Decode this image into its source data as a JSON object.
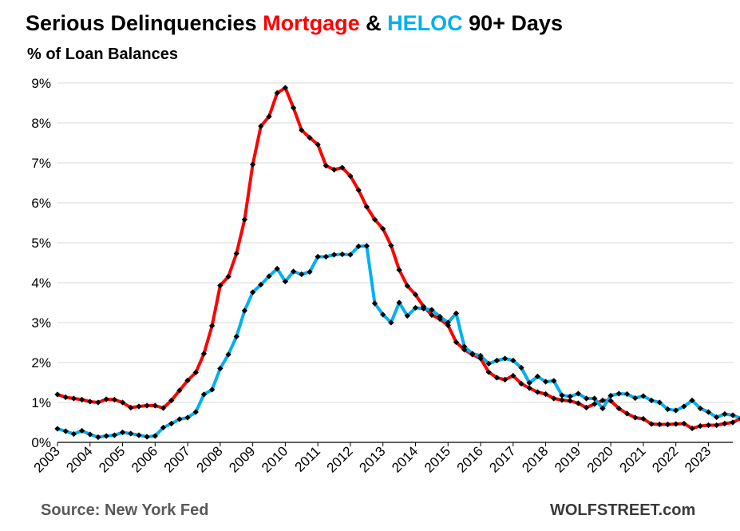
{
  "title": {
    "part1": "Serious Delinquencies ",
    "mortgage": "Mortgage",
    "amp": " & ",
    "heloc": "HELOC",
    "part2": " 90+ Days"
  },
  "subtitle": "% of Loan Balances",
  "source": "Source: New York Fed",
  "credit": "WOLFSTREET.com",
  "colors": {
    "mortgage": "#ff0000",
    "heloc": "#00b0f0",
    "markers": "#000000",
    "grid": "#d9d9d9"
  },
  "chart_data": {
    "type": "line",
    "title": "Serious Delinquencies Mortgage & HELOC 90+ Days",
    "subtitle": "% of Loan Balances",
    "ylabel": "",
    "xlabel": "",
    "ylim": [
      0,
      9
    ],
    "xlim": [
      2003,
      2023.75
    ],
    "grid": true,
    "legend": "none",
    "y_ticks": [
      "0%",
      "1%",
      "2%",
      "3%",
      "4%",
      "5%",
      "6%",
      "7%",
      "8%",
      "9%"
    ],
    "x_ticks": [
      "2003",
      "2004",
      "2005",
      "2006",
      "2007",
      "2008",
      "2009",
      "2010",
      "2011",
      "2012",
      "2013",
      "2014",
      "2015",
      "2016",
      "2017",
      "2018",
      "2019",
      "2020",
      "2021",
      "2022",
      "2023"
    ],
    "x_start": "2003 Q1",
    "x_step": "quarter",
    "series": [
      {
        "name": "Mortgage",
        "color": "#ff0000",
        "values": [
          1.2,
          1.13,
          1.1,
          1.07,
          1.02,
          1.0,
          1.08,
          1.07,
          1.0,
          0.87,
          0.9,
          0.92,
          0.92,
          0.86,
          1.05,
          1.3,
          1.55,
          1.75,
          2.22,
          2.92,
          3.93,
          4.15,
          4.73,
          5.58,
          6.96,
          7.92,
          8.16,
          8.75,
          8.88,
          8.38,
          7.82,
          7.63,
          7.46,
          6.93,
          6.83,
          6.88,
          6.67,
          6.32,
          5.9,
          5.58,
          5.35,
          4.93,
          4.32,
          3.92,
          3.7,
          3.4,
          3.19,
          3.09,
          2.93,
          2.51,
          2.32,
          2.2,
          2.1,
          1.76,
          1.62,
          1.57,
          1.67,
          1.47,
          1.36,
          1.26,
          1.21,
          1.1,
          1.06,
          1.04,
          0.98,
          0.87,
          0.96,
          1.05,
          1.04,
          0.85,
          0.72,
          0.62,
          0.59,
          0.46,
          0.45,
          0.45,
          0.46,
          0.47,
          0.35,
          0.41,
          0.43,
          0.43,
          0.47,
          0.5,
          0.6
        ]
      },
      {
        "name": "HELOC",
        "color": "#00b0f0",
        "values": [
          0.34,
          0.28,
          0.21,
          0.29,
          0.2,
          0.13,
          0.16,
          0.18,
          0.25,
          0.22,
          0.18,
          0.14,
          0.16,
          0.37,
          0.47,
          0.58,
          0.62,
          0.76,
          1.2,
          1.32,
          1.85,
          2.2,
          2.65,
          3.3,
          3.76,
          3.95,
          4.16,
          4.35,
          4.03,
          4.28,
          4.21,
          4.27,
          4.65,
          4.65,
          4.7,
          4.71,
          4.7,
          4.91,
          4.92,
          3.48,
          3.2,
          3.0,
          3.5,
          3.17,
          3.37,
          3.35,
          3.32,
          3.15,
          3.0,
          3.23,
          2.4,
          2.22,
          2.17,
          1.97,
          2.05,
          2.1,
          2.05,
          1.87,
          1.49,
          1.65,
          1.52,
          1.54,
          1.18,
          1.15,
          1.22,
          1.1,
          1.1,
          0.85,
          1.17,
          1.22,
          1.21,
          1.11,
          1.16,
          1.05,
          1.0,
          0.83,
          0.8,
          0.9,
          1.05,
          0.85,
          0.76,
          0.63,
          0.71,
          0.68,
          0.6
        ]
      }
    ]
  }
}
